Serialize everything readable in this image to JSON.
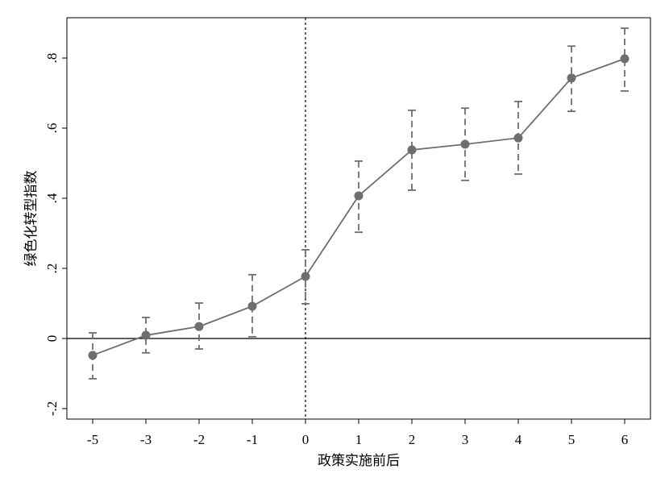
{
  "chart_data": {
    "type": "errorbar-line",
    "x_label": "政策实施前后",
    "y_label": "绿色化转型指数",
    "categories": [
      "-5",
      "-3",
      "-2",
      "-1",
      "0",
      "1",
      "2",
      "3",
      "4",
      "5",
      "6"
    ],
    "series": [
      {
        "color": "#6e6e6e",
        "values": [
          -0.048,
          0.009,
          0.034,
          0.092,
          0.177,
          0.407,
          0.538,
          0.554,
          0.572,
          0.743,
          0.798
        ],
        "lower": [
          -0.115,
          -0.041,
          -0.03,
          0.005,
          0.099,
          0.303,
          0.423,
          0.451,
          0.469,
          0.648,
          0.706
        ],
        "upper": [
          0.016,
          0.06,
          0.101,
          0.182,
          0.253,
          0.506,
          0.651,
          0.657,
          0.676,
          0.834,
          0.885
        ]
      }
    ],
    "ylim": [
      -0.23,
      0.915
    ],
    "yticks": [
      {
        "value": -0.2,
        "label": "-.2"
      },
      0,
      {
        "value": 0.2,
        "label": ".2"
      },
      {
        "value": 0.4,
        "label": ".4"
      },
      {
        "value": 0.6,
        "label": ".6"
      },
      {
        "value": 0.8,
        "label": ".8"
      }
    ],
    "hline": 0,
    "xline": "0"
  }
}
